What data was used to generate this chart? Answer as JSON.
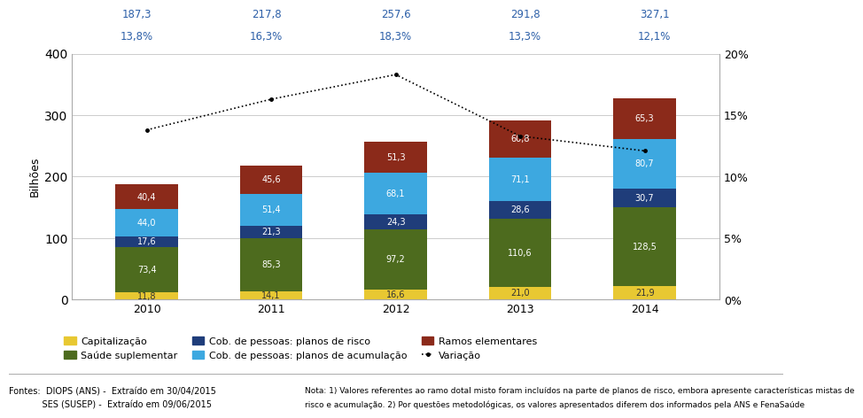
{
  "years": [
    2010,
    2011,
    2012,
    2013,
    2014
  ],
  "capitalizacao": [
    11.8,
    14.1,
    16.6,
    21.0,
    21.9
  ],
  "saude_suplementar": [
    73.4,
    85.3,
    97.2,
    110.6,
    128.5
  ],
  "cob_risco": [
    17.6,
    21.3,
    24.3,
    28.6,
    30.7
  ],
  "cob_acumulacao": [
    44.0,
    51.4,
    68.1,
    71.1,
    80.7
  ],
  "ramos_elementares": [
    40.4,
    45.6,
    51.3,
    60.8,
    65.3
  ],
  "totals": [
    187.3,
    217.8,
    257.6,
    291.8,
    327.1
  ],
  "variacao_pct": [
    13.8,
    16.3,
    18.3,
    13.3,
    12.1
  ],
  "color_capitalizacao": "#e8c832",
  "color_saude_suplementar": "#4d6b1e",
  "color_cob_risco": "#1f3d7a",
  "color_cob_acumulacao": "#3da8e0",
  "color_ramos_elementares": "#8b2a1a",
  "color_variacao": "#000000",
  "annotation_color": "#2c5fa8",
  "ylim_left": [
    0,
    400
  ],
  "ylim_right": [
    0,
    20
  ],
  "ylabel_left": "Bilhões",
  "bar_width": 0.5,
  "grid_color": "#cccccc",
  "legend_labels": [
    "Capitalização",
    "Saúde suplementar",
    "Cob. de pessoas: planos de risco",
    "Cob. de pessoas: planos de acumulação",
    "Ramos elementares",
    "Variação"
  ],
  "sources_line1": "Fontes:  DIOPS (ANS) -  Extraído em 30/04/2015",
  "sources_line2": "            SES (SUSEP) -  Extraído em 09/06/2015",
  "nota_line1": "Nota: 1) Valores referentes ao ramo dotal misto foram incluídos na parte de planos de risco, embora apresente características mistas de",
  "nota_line2": "risco e acumulação. 2) Por questões metodológicas, os valores apresentados diferem dos informados pela ANS e FenaSaúde"
}
